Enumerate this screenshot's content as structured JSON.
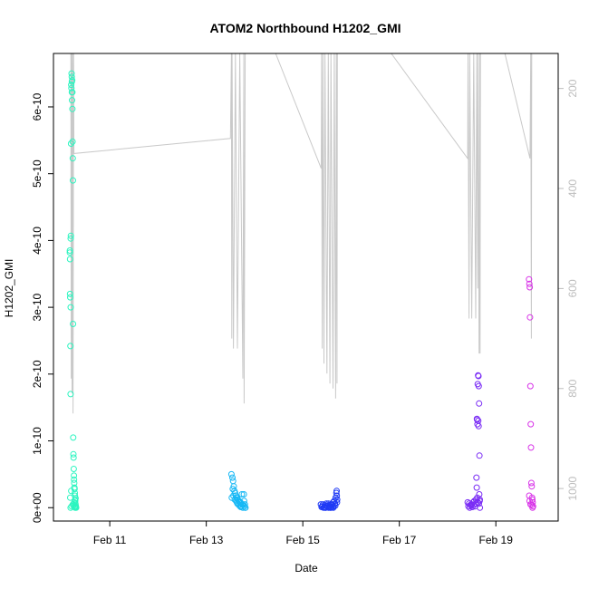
{
  "chart_data": {
    "type": "scatter",
    "title": "ATOM2 Northbound H1202_GMI",
    "xlabel": "Date",
    "ylabel": "H1202_GMI",
    "x_ticks": [
      "Feb 11",
      "Feb 13",
      "Feb 15",
      "Feb 17",
      "Feb 19"
    ],
    "y_ticks": [
      "0e+00",
      "1e-10",
      "2e-10",
      "3e-10",
      "4e-10",
      "5e-10",
      "6e-10"
    ],
    "y_right_ticks": [
      "200",
      "400",
      "600",
      "800",
      "1000"
    ],
    "xlim": [
      "2014-02-09 20:00",
      "2014-02-20 07:00"
    ],
    "ylim": [
      -2e-11,
      6.8e-10
    ],
    "y_right_lim": [
      1065,
      130
    ],
    "y_right_reversed": true,
    "grid": false,
    "colors": {
      "s1": "#2cf5c0",
      "s2": "#17b8f5",
      "s3": "#1f3af5",
      "s4": "#7a2cf5",
      "s5": "#d833e8",
      "line": "#c9c9c9"
    },
    "series": [
      {
        "color_key": "s1",
        "x": [
          "2014-02-10 04:10",
          "2014-02-10 04:10",
          "2014-02-10 04:15",
          "2014-02-10 04:15",
          "2014-02-10 04:20",
          "2014-02-10 04:25",
          "2014-02-10 04:30",
          "2014-02-10 04:35",
          "2014-02-10 04:35",
          "2014-02-10 04:40",
          "2014-02-10 04:45",
          "2014-02-10 04:50",
          "2014-02-10 04:55",
          "2014-02-10 05:00",
          "2014-02-10 05:05",
          "2014-02-10 05:10",
          "2014-02-10 05:10",
          "2014-02-10 05:15",
          "2014-02-10 05:20",
          "2014-02-10 05:25",
          "2014-02-10 05:25",
          "2014-02-10 05:30",
          "2014-02-10 05:35",
          "2014-02-10 05:40",
          "2014-02-10 05:45",
          "2014-02-10 05:50",
          "2014-02-10 05:55",
          "2014-02-10 06:00",
          "2014-02-10 06:05",
          "2014-02-10 06:10",
          "2014-02-10 06:15",
          "2014-02-10 06:20",
          "2014-02-10 06:25",
          "2014-02-10 06:30",
          "2014-02-10 06:35",
          "2014-02-10 06:40",
          "2014-02-10 06:45",
          "2014-02-10 06:50",
          "2014-02-10 06:55",
          "2014-02-10 07:00",
          "2014-02-10 07:05",
          "2014-02-10 07:10",
          "2014-02-10 07:15",
          "2014-02-10 04:20",
          "2014-02-10 04:50",
          "2014-02-10 05:40",
          "2014-02-10 06:20",
          "2014-02-10 06:45",
          "2014-02-10 07:00",
          "2014-02-10 04:30",
          "2014-02-10 05:00",
          "2014-02-10 05:55",
          "2014-02-10 06:30",
          "2014-02-10 06:50"
        ],
        "y": [
          3.85e-10,
          3.82e-10,
          3.72e-10,
          3.2e-10,
          3.15e-10,
          2.42e-10,
          1.7e-10,
          3e-10,
          4.03e-10,
          4.07e-10,
          5.45e-10,
          6.33e-10,
          6.28e-10,
          6.5e-10,
          6.45e-10,
          6.38e-10,
          6.22e-10,
          6.1e-10,
          6.4e-10,
          6.22e-10,
          5.97e-10,
          5.48e-10,
          5.23e-10,
          4.9e-10,
          2.75e-10,
          1.05e-10,
          8e-11,
          7.5e-11,
          5.8e-11,
          4.8e-11,
          4.2e-11,
          3.7e-11,
          3e-11,
          2.8e-11,
          2.2e-11,
          1.8e-11,
          1.2e-11,
          1e-11,
          6e-12,
          4e-12,
          2e-12,
          1e-12,
          0.0,
          1.5e-11,
          2.5e-11,
          5e-12,
          8e-12,
          2e-12,
          1.4e-11,
          0.0,
          2e-12,
          3e-12,
          1e-12,
          0.0
        ]
      },
      {
        "color_key": "s2",
        "x": [
          "2014-02-13 12:30",
          "2014-02-13 13:00",
          "2014-02-13 13:20",
          "2014-02-13 13:40",
          "2014-02-13 14:00",
          "2014-02-13 14:20",
          "2014-02-13 14:40",
          "2014-02-13 15:00",
          "2014-02-13 15:20",
          "2014-02-13 15:40",
          "2014-02-13 16:00",
          "2014-02-13 16:20",
          "2014-02-13 16:40",
          "2014-02-13 17:00",
          "2014-02-13 17:20",
          "2014-02-13 17:40",
          "2014-02-13 18:00",
          "2014-02-13 18:20",
          "2014-02-13 18:40",
          "2014-02-13 19:00",
          "2014-02-13 19:20",
          "2014-02-13 12:40",
          "2014-02-13 13:30",
          "2014-02-13 14:10",
          "2014-02-13 14:50",
          "2014-02-13 15:30",
          "2014-02-13 16:10",
          "2014-02-13 16:50",
          "2014-02-13 17:30",
          "2014-02-13 18:10",
          "2014-02-13 18:50",
          "2014-02-13 19:30",
          "2014-02-13 13:10",
          "2014-02-13 15:10",
          "2014-02-13 17:10",
          "2014-02-13 19:10"
        ],
        "y": [
          5e-11,
          4.5e-11,
          4e-11,
          3.2e-11,
          2.5e-11,
          2.2e-11,
          1.8e-11,
          1.5e-11,
          1.5e-11,
          1.2e-11,
          1e-11,
          1e-11,
          8e-12,
          8e-12,
          6e-12,
          2e-11,
          5e-12,
          4e-12,
          2e-11,
          2e-12,
          0.0,
          1.5e-11,
          1.8e-11,
          1.2e-11,
          1e-11,
          6e-12,
          4e-12,
          2e-12,
          2e-12,
          0.0,
          1e-11,
          0.0,
          2.8e-11,
          8e-12,
          1e-12,
          5e-12
        ]
      },
      {
        "color_key": "s3",
        "x": [
          "2014-02-15 09:00",
          "2014-02-15 09:40",
          "2014-02-15 10:20",
          "2014-02-15 11:00",
          "2014-02-15 11:40",
          "2014-02-15 12:20",
          "2014-02-15 13:00",
          "2014-02-15 13:40",
          "2014-02-15 14:20",
          "2014-02-15 15:00",
          "2014-02-15 15:40",
          "2014-02-15 16:20",
          "2014-02-15 17:00",
          "2014-02-15 09:20",
          "2014-02-15 10:00",
          "2014-02-15 10:40",
          "2014-02-15 11:20",
          "2014-02-15 12:00",
          "2014-02-15 12:40",
          "2014-02-15 13:20",
          "2014-02-15 14:00",
          "2014-02-15 14:40",
          "2014-02-15 15:20",
          "2014-02-15 16:00",
          "2014-02-15 16:40",
          "2014-02-15 16:50",
          "2014-02-15 16:55",
          "2014-02-15 17:05",
          "2014-02-15 11:10",
          "2014-02-15 13:10",
          "2014-02-15 15:10",
          "2014-02-15 12:50",
          "2014-02-15 14:50",
          "2014-02-15 16:10"
        ],
        "y": [
          5e-12,
          2e-12,
          0.0,
          3e-12,
          6e-12,
          2e-12,
          4e-12,
          0.0,
          5e-12,
          8e-12,
          1e-11,
          1.5e-11,
          8e-12,
          1e-12,
          5e-12,
          1e-12,
          0.0,
          3e-12,
          6e-12,
          2e-12,
          0.0,
          4e-12,
          2e-12,
          6e-12,
          2.2e-11,
          2.5e-11,
          1.8e-11,
          1.2e-11,
          0.0,
          1e-12,
          0.0,
          0.0,
          1e-12,
          3e-12
        ]
      },
      {
        "color_key": "s4",
        "x": [
          "2014-02-18 10:00",
          "2014-02-18 10:40",
          "2014-02-18 11:20",
          "2014-02-18 12:00",
          "2014-02-18 12:40",
          "2014-02-18 13:20",
          "2014-02-18 14:00",
          "2014-02-18 14:20",
          "2014-02-18 14:30",
          "2014-02-18 14:40",
          "2014-02-18 14:50",
          "2014-02-18 15:00",
          "2014-02-18 15:10",
          "2014-02-18 15:20",
          "2014-02-18 15:30",
          "2014-02-18 15:40",
          "2014-02-18 15:50",
          "2014-02-18 16:00",
          "2014-02-18 14:35",
          "2014-02-18 15:15",
          "2014-02-18 15:25",
          "2014-02-18 15:45",
          "2014-02-18 10:20",
          "2014-02-18 11:00",
          "2014-02-18 11:40",
          "2014-02-18 12:20",
          "2014-02-18 13:00",
          "2014-02-18 13:40",
          "2014-02-18 14:10",
          "2014-02-18 15:05",
          "2014-02-18 15:35",
          "2014-02-18 15:55",
          "2014-02-18 16:05",
          "2014-02-18 14:45"
        ],
        "y": [
          8e-12,
          6e-12,
          4e-12,
          5e-12,
          8e-12,
          1e-11,
          6e-12,
          4.5e-11,
          3e-11,
          1.32e-10,
          1.25e-10,
          1.85e-10,
          1.98e-10,
          1.97e-10,
          1.82e-10,
          1.56e-10,
          7.8e-11,
          1.2e-11,
          1.33e-10,
          1.3e-10,
          1.22e-10,
          2e-11,
          2e-12,
          0.0,
          3e-12,
          1e-12,
          4e-12,
          2e-12,
          1.2e-11,
          8e-12,
          6e-12,
          1e-11,
          0.0,
          1.5e-11
        ]
      },
      {
        "color_key": "s5",
        "x": [
          "2014-02-19 16:30",
          "2014-02-19 16:40",
          "2014-02-19 16:50",
          "2014-02-19 17:00",
          "2014-02-19 17:10",
          "2014-02-19 17:20",
          "2014-02-19 17:30",
          "2014-02-19 17:40",
          "2014-02-19 17:50",
          "2014-02-19 18:00",
          "2014-02-19 18:10",
          "2014-02-19 18:20",
          "2014-02-19 18:30",
          "2014-02-19 16:35",
          "2014-02-19 17:15",
          "2014-02-19 17:55",
          "2014-02-19 18:15",
          "2014-02-19 16:45"
        ],
        "y": [
          3.42e-10,
          3.35e-10,
          3.3e-10,
          2.85e-10,
          1.82e-10,
          1.25e-10,
          9e-11,
          3.7e-11,
          3.2e-11,
          1.5e-11,
          1.2e-11,
          8e-12,
          2e-12,
          1.8e-11,
          5e-12,
          4e-12,
          0.0,
          1e-11
        ]
      }
    ],
    "pressure_line": {
      "color_key": "line",
      "axis": "right",
      "points": [
        [
          "2014-02-10 04:40",
          130
        ],
        [
          "2014-02-10 04:50",
          780
        ],
        [
          "2014-02-10 05:00",
          130
        ],
        [
          "2014-02-10 05:15",
          810
        ],
        [
          "2014-02-10 05:30",
          130
        ],
        [
          "2014-02-10 05:45",
          850
        ],
        [
          "2014-02-10 06:00",
          130
        ],
        [
          "2014-02-10 06:10",
          330
        ],
        [
          "2014-02-13 12:00",
          300
        ],
        [
          "2014-02-13 12:30",
          130
        ],
        [
          "2014-02-13 12:40",
          700
        ],
        [
          "2014-02-13 12:50",
          130
        ],
        [
          "2014-02-13 13:30",
          720
        ],
        [
          "2014-02-13 14:30",
          130
        ],
        [
          "2014-02-13 15:30",
          720
        ],
        [
          "2014-02-13 16:40",
          130
        ],
        [
          "2014-02-13 18:10",
          780
        ],
        [
          "2014-02-13 18:40",
          130
        ],
        [
          "2014-02-13 18:50",
          830
        ],
        [
          "2014-02-13 19:20",
          130
        ],
        [
          "2014-02-14 10:30",
          130
        ],
        [
          "2014-02-15 09:10",
          360
        ],
        [
          "2014-02-15 09:20",
          130
        ],
        [
          "2014-02-15 09:40",
          720
        ],
        [
          "2014-02-15 10:00",
          130
        ],
        [
          "2014-02-15 10:30",
          750
        ],
        [
          "2014-02-15 11:00",
          130
        ],
        [
          "2014-02-15 12:00",
          770
        ],
        [
          "2014-02-15 12:40",
          130
        ],
        [
          "2014-02-15 13:30",
          790
        ],
        [
          "2014-02-15 14:00",
          130
        ],
        [
          "2014-02-15 15:00",
          800
        ],
        [
          "2014-02-15 15:40",
          130
        ],
        [
          "2014-02-15 16:20",
          820
        ],
        [
          "2014-02-15 16:40",
          130
        ],
        [
          "2014-02-15 17:00",
          790
        ],
        [
          "2014-02-15 17:10",
          130
        ],
        [
          "2014-02-16 20:00",
          130
        ],
        [
          "2014-02-18 10:00",
          340
        ],
        [
          "2014-02-18 10:10",
          130
        ],
        [
          "2014-02-18 10:40",
          660
        ],
        [
          "2014-02-18 11:00",
          130
        ],
        [
          "2014-02-18 12:00",
          660
        ],
        [
          "2014-02-18 13:00",
          130
        ],
        [
          "2014-02-18 14:00",
          660
        ],
        [
          "2014-02-18 14:30",
          130
        ],
        [
          "2014-02-18 15:00",
          600
        ],
        [
          "2014-02-18 15:10",
          130
        ],
        [
          "2014-02-18 15:40",
          730
        ],
        [
          "2014-02-18 16:00",
          130
        ],
        [
          "2014-02-18 16:10",
          730
        ],
        [
          "2014-02-18 16:20",
          130
        ],
        [
          "2014-02-18 18:30",
          130
        ],
        [
          "2014-02-18 20:00",
          130
        ],
        [
          "2014-02-19 04:30",
          130
        ],
        [
          "2014-02-19 17:00",
          340
        ],
        [
          "2014-02-19 17:20",
          130
        ],
        [
          "2014-02-19 17:40",
          700
        ],
        [
          "2014-02-19 17:50",
          130
        ]
      ]
    }
  }
}
